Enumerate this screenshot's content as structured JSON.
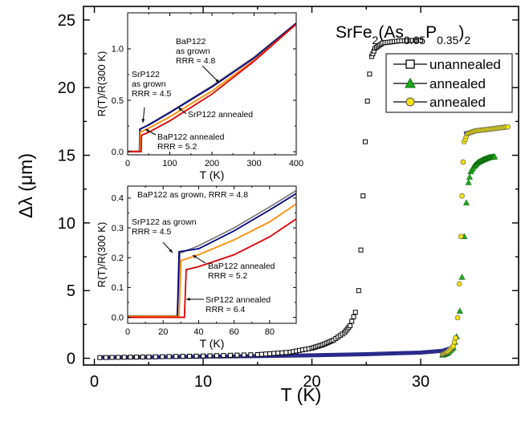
{
  "chart_data": [
    {
      "type": "scatter",
      "title_parts": {
        "base": "SrFe",
        "sub1": "2",
        "mid": "(As",
        "sub2": "0.65",
        "mid2": "P",
        "sub3": "0.35",
        "end": ")",
        "sub4": "2"
      },
      "xlabel": "T (K)",
      "ylabel": "Δλ (μm)",
      "xlim": [
        -1,
        39
      ],
      "ylim": [
        -0.5,
        26
      ],
      "xticks": [
        "0",
        "10",
        "20",
        "30"
      ],
      "yticks": [
        "0",
        "5",
        "10",
        "15",
        "20",
        "25"
      ],
      "legend_position": "top-right",
      "series": [
        {
          "name": "unannealed",
          "marker": "square-open",
          "color": "#000000",
          "points": [
            [
              0.5,
              0.05
            ],
            [
              5,
              0.1
            ],
            [
              10,
              0.17
            ],
            [
              15,
              0.27
            ],
            [
              18,
              0.45
            ],
            [
              20,
              0.75
            ],
            [
              21,
              1.0
            ],
            [
              22,
              1.35
            ],
            [
              23,
              1.9
            ],
            [
              23.5,
              2.4
            ],
            [
              24,
              3.4
            ],
            [
              24.3,
              5
            ],
            [
              24.5,
              8
            ],
            [
              24.7,
              12
            ],
            [
              24.9,
              16
            ],
            [
              25.1,
              19
            ],
            [
              25.3,
              21
            ],
            [
              25.5,
              22.3
            ],
            [
              25.8,
              22.9
            ],
            [
              26.5,
              23.3
            ],
            [
              28,
              23.45
            ],
            [
              30,
              23.5
            ]
          ]
        },
        {
          "name": "annealed",
          "marker": "triangle",
          "color": "#1faa1f",
          "points": [
            [
              32,
              0.25
            ],
            [
              32.5,
              0.4
            ],
            [
              33,
              0.8
            ],
            [
              33.3,
              1.6
            ],
            [
              33.6,
              3.5
            ],
            [
              33.8,
              6
            ],
            [
              34,
              9
            ],
            [
              34.2,
              11.5
            ],
            [
              34.4,
              13
            ],
            [
              34.6,
              13.8
            ],
            [
              34.9,
              14.2
            ],
            [
              35.3,
              14.5
            ],
            [
              35.8,
              14.7
            ],
            [
              36.3,
              14.85
            ],
            [
              36.8,
              14.9
            ]
          ]
        },
        {
          "name": "annealed",
          "marker": "circle",
          "color": "#f2e30c",
          "points": [
            [
              32,
              0.3
            ],
            [
              32.5,
              0.5
            ],
            [
              33,
              0.9
            ],
            [
              33.2,
              1.5
            ],
            [
              33.4,
              3
            ],
            [
              33.55,
              5.5
            ],
            [
              33.7,
              9
            ],
            [
              33.8,
              12
            ],
            [
              33.9,
              14.5
            ],
            [
              34,
              16
            ],
            [
              34.3,
              16.6
            ],
            [
              35,
              16.8
            ],
            [
              36,
              16.9
            ],
            [
              37,
              17
            ],
            [
              38,
              17.1
            ]
          ]
        }
      ],
      "baseline_series": {
        "color": "#2a2a8a",
        "points": [
          [
            0.3,
            0.05
          ],
          [
            5,
            0.08
          ],
          [
            10,
            0.12
          ],
          [
            15,
            0.16
          ],
          [
            20,
            0.22
          ],
          [
            25,
            0.3
          ],
          [
            30,
            0.42
          ],
          [
            32,
            0.55
          ],
          [
            33,
            0.8
          ]
        ],
        "plateau": [
          [
            34,
            16.6
          ],
          [
            35,
            16.8
          ],
          [
            36,
            16.9
          ],
          [
            37,
            17
          ],
          [
            38,
            17.1
          ]
        ]
      }
    },
    {
      "type": "line",
      "xlabel": "T (K)",
      "ylabel": "R(T)/R(300 K)",
      "xlim": [
        0,
        400
      ],
      "ylim": [
        -0.03,
        1.35
      ],
      "xticks": [
        "0",
        "100",
        "200",
        "300",
        "400"
      ],
      "yticks": [
        "0.0",
        "0.5",
        "1.0"
      ],
      "annotations": [
        {
          "lines": [
            "BaP122",
            "as grown",
            "RRR = 4.8"
          ]
        },
        {
          "lines": [
            "SrP122",
            "as grown",
            "RRR = 4.5"
          ]
        },
        {
          "lines": [
            "SrP122 annealed"
          ]
        },
        {
          "lines": [
            "BaP122 annealed",
            "RRR = 5.2"
          ]
        }
      ],
      "series": [
        {
          "color": "#7f7f7f",
          "points": [
            [
              0,
              0.005
            ],
            [
              28,
              0.005
            ],
            [
              29.5,
              0.215
            ],
            [
              50,
              0.265
            ],
            [
              100,
              0.385
            ],
            [
              200,
              0.64
            ],
            [
              300,
              0.92
            ],
            [
              400,
              1.25
            ]
          ]
        },
        {
          "color": "#000080",
          "points": [
            [
              0,
              0.003
            ],
            [
              28,
              0.003
            ],
            [
              29,
              0.22
            ],
            [
              50,
              0.26
            ],
            [
              100,
              0.38
            ],
            [
              200,
              0.63
            ],
            [
              300,
              0.91
            ],
            [
              400,
              1.25
            ]
          ]
        },
        {
          "color": "#ff8c00",
          "points": [
            [
              0,
              0.003
            ],
            [
              29,
              0.003
            ],
            [
              30,
              0.19
            ],
            [
              50,
              0.23
            ],
            [
              100,
              0.34
            ],
            [
              200,
              0.59
            ],
            [
              300,
              0.89
            ],
            [
              400,
              1.24
            ]
          ]
        },
        {
          "color": "#e00000",
          "points": [
            [
              0,
              0.0
            ],
            [
              32,
              0.0
            ],
            [
              33,
              0.16
            ],
            [
              50,
              0.19
            ],
            [
              100,
              0.3
            ],
            [
              200,
              0.56
            ],
            [
              300,
              0.88
            ],
            [
              400,
              1.24
            ]
          ]
        }
      ]
    },
    {
      "type": "line",
      "xlabel": "T (K)",
      "ylabel": "R(T)/R(300 K)",
      "xlim": [
        0,
        95
      ],
      "ylim": [
        -0.02,
        0.44
      ],
      "xticks": [
        "0",
        "20",
        "40",
        "60",
        "80"
      ],
      "yticks": [
        "0.0",
        "0.1",
        "0.2",
        "0.3",
        "0.4"
      ],
      "annotations": [
        {
          "lines": [
            "BaP122 as grown, RRR = 4.8"
          ]
        },
        {
          "lines": [
            "SrP122 as grown",
            "RRR = 4.5"
          ]
        },
        {
          "lines": [
            "BaP122 annealed",
            "RRR = 5.2"
          ]
        },
        {
          "lines": [
            "SrP122 annealed",
            "RRR = 6.4"
          ]
        }
      ],
      "series": [
        {
          "color": "#7f7f7f",
          "points": [
            [
              0,
              0.005
            ],
            [
              28,
              0.005
            ],
            [
              29.5,
              0.215
            ],
            [
              40,
              0.24
            ],
            [
              60,
              0.3
            ],
            [
              80,
              0.37
            ],
            [
              95,
              0.425
            ]
          ]
        },
        {
          "color": "#000080",
          "points": [
            [
              0,
              0.003
            ],
            [
              28,
              0.003
            ],
            [
              29,
              0.22
            ],
            [
              40,
              0.23
            ],
            [
              60,
              0.29
            ],
            [
              80,
              0.36
            ],
            [
              95,
              0.415
            ]
          ]
        },
        {
          "color": "#ff8c00",
          "points": [
            [
              0,
              0.003
            ],
            [
              29,
              0.003
            ],
            [
              30,
              0.19
            ],
            [
              40,
              0.21
            ],
            [
              60,
              0.26
            ],
            [
              80,
              0.32
            ],
            [
              95,
              0.38
            ]
          ]
        },
        {
          "color": "#e00000",
          "points": [
            [
              0,
              0.0
            ],
            [
              32,
              0.0
            ],
            [
              33,
              0.16
            ],
            [
              40,
              0.17
            ],
            [
              60,
              0.21
            ],
            [
              80,
              0.27
            ],
            [
              95,
              0.33
            ]
          ]
        }
      ]
    }
  ]
}
